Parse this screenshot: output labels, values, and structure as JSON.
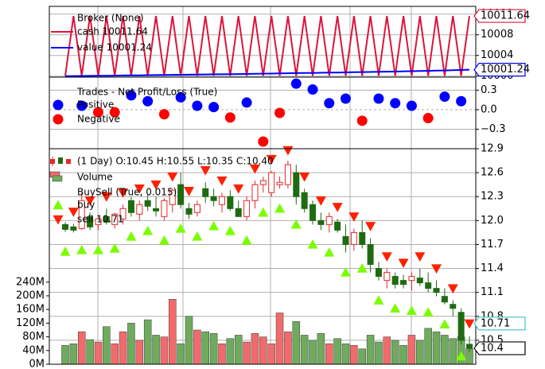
{
  "chart_data": [
    {
      "type": "line",
      "legend_title": "Broker (None)",
      "ylim": [
        9999.8,
        10013.5
      ],
      "yticks": [
        10000,
        10004,
        10008,
        10012
      ],
      "grid": true,
      "series": [
        {
          "name": "cash 10011.64",
          "color": "#dc143c",
          "values": [
            10000.05,
            10011.64,
            10000.05,
            10011.64,
            10000.05,
            10011.64,
            10000.05,
            10011.64,
            10000.05,
            10011.64,
            10000.05,
            10011.64,
            10000.05,
            10011.64,
            10000.05,
            10011.64,
            10000.05,
            10011.64,
            10000.05,
            10011.64,
            10000.05,
            10011.64,
            10000.05,
            10011.64,
            10000.05,
            10011.64,
            10000.05,
            10011.64,
            10000.05,
            10011.64,
            10000.05,
            10011.64,
            10000.05,
            10011.64,
            10000.05,
            10011.64,
            10000.05,
            10011.64,
            10000.05,
            10011.64,
            10000.05,
            10011.64,
            10000.05,
            10011.64,
            10000.05,
            10011.64,
            10000.05,
            10011.64,
            10000.05,
            10011.64
          ]
        },
        {
          "name": "value 10001.24",
          "color": "#0000ff",
          "values": [
            10000.0,
            10000.02,
            10000.03,
            10000.05,
            10000.06,
            10000.08,
            10000.1,
            10000.12,
            10000.14,
            10000.15,
            10000.18,
            10000.2,
            10000.22,
            10000.25,
            10000.26,
            10000.28,
            10000.3,
            10000.32,
            10000.35,
            10000.36,
            10000.38,
            10000.4,
            10000.42,
            10000.45,
            10000.48,
            10000.5,
            10000.52,
            10000.55,
            10000.58,
            10000.6,
            10000.62,
            10000.65,
            10000.68,
            10000.7,
            10000.72,
            10000.75,
            10000.78,
            10000.8,
            10000.83,
            10000.86,
            10000.88,
            10000.92,
            10000.95,
            10000.98,
            10001.02,
            10001.06,
            10001.1,
            10001.14,
            10001.18,
            10001.24
          ]
        }
      ]
    },
    {
      "type": "scatter",
      "legend_title": "Trades - Net Profit/Loss (True)",
      "ylim": [
        -0.6,
        0.5
      ],
      "yticks": [
        0.3,
        {
          "value": 0,
          "label": "0.0"
        },
        {
          "value": -0.3,
          "label": "−0.3"
        }
      ],
      "grid": true,
      "series": [
        {
          "name": "Positive",
          "color": "#0000ff",
          "values": [
            null,
            null,
            0.06,
            null,
            null,
            null,
            null,
            null,
            0.22,
            null,
            0.13,
            null,
            null,
            null,
            0.19,
            null,
            0.06,
            null,
            0.04,
            null,
            null,
            null,
            0.11,
            null,
            null,
            null,
            null,
            null,
            0.4,
            null,
            0.31,
            null,
            0.1,
            null,
            0.17,
            null,
            null,
            null,
            0.17,
            null,
            0.1,
            null,
            0.06,
            null,
            null,
            null,
            0.2,
            null,
            0.13,
            null
          ]
        },
        {
          "name": "Negative",
          "color": "#ff0000",
          "values": [
            null,
            null,
            null,
            null,
            -0.04,
            null,
            -0.04,
            null,
            null,
            null,
            null,
            null,
            -0.07,
            null,
            null,
            null,
            null,
            null,
            null,
            null,
            -0.12,
            null,
            null,
            null,
            -0.49,
            null,
            -0.05,
            null,
            null,
            null,
            null,
            null,
            null,
            null,
            null,
            null,
            -0.17,
            null,
            null,
            null,
            null,
            null,
            null,
            null,
            -0.13,
            null,
            null,
            null,
            null,
            null
          ]
        }
      ]
    },
    {
      "type": "candlestick",
      "ylim": [
        10.2,
        12.9
      ],
      "yticks": [
        10.5,
        10.8,
        11.1,
        11.4,
        11.7,
        {
          "value": 12,
          "label": "12.0"
        },
        12.3,
        12.6,
        12.9
      ],
      "y2lim": [
        0,
        630
      ],
      "y2ticks": [
        {
          "value": 0,
          "label": "0M"
        },
        {
          "value": 40,
          "label": "40M"
        },
        {
          "value": 80,
          "label": "80M"
        },
        {
          "value": 120,
          "label": "120M"
        },
        {
          "value": 160,
          "label": "160M"
        },
        {
          "value": 200,
          "label": "200M"
        },
        {
          "value": 240,
          "label": "240M"
        }
      ],
      "grid": true,
      "legend_group_title": "BuySell (True, 0.015)",
      "ohlc": {
        "name": "(1 Day) O:10.45 H:10.55 L:10.35 C:10.40",
        "up_color": "#e8272a",
        "down_color": "#1e6b12",
        "open": [
          11.95,
          11.92,
          11.9,
          12.05,
          11.95,
          12.05,
          11.95,
          12.02,
          12.25,
          12.08,
          12.25,
          12.15,
          12.05,
          12.2,
          12.45,
          12.15,
          12.1,
          12.4,
          12.3,
          12.2,
          12.3,
          12.15,
          12.05,
          12.25,
          12.45,
          12.35,
          12.45,
          12.45,
          12.6,
          12.35,
          12.2,
          12.0,
          11.95,
          11.98,
          11.8,
          11.7,
          11.85,
          11.7,
          11.4,
          11.25,
          11.3,
          11.25,
          11.25,
          11.28,
          11.22,
          11.15,
          11.05,
          10.95,
          10.85,
          10.45
        ],
        "high": [
          11.98,
          11.96,
          12.35,
          12.1,
          12.05,
          12.15,
          12.1,
          12.2,
          12.3,
          12.25,
          12.32,
          12.3,
          12.28,
          12.4,
          12.6,
          12.22,
          12.25,
          12.48,
          12.4,
          12.35,
          12.38,
          12.25,
          12.3,
          12.5,
          12.55,
          12.62,
          12.55,
          12.75,
          12.7,
          12.4,
          12.25,
          12.1,
          12.1,
          12.02,
          11.95,
          11.9,
          12.0,
          11.78,
          11.48,
          11.4,
          11.35,
          11.32,
          11.35,
          11.4,
          11.35,
          11.25,
          11.15,
          11.0,
          10.9,
          10.55
        ],
        "low": [
          11.86,
          11.85,
          11.88,
          11.88,
          11.88,
          11.95,
          11.9,
          11.95,
          12.05,
          12.0,
          12.12,
          12.05,
          12.0,
          12.1,
          12.15,
          12.02,
          12.05,
          12.22,
          12.18,
          12.1,
          12.12,
          12.05,
          12.0,
          12.15,
          12.35,
          12.3,
          12.4,
          12.4,
          12.2,
          12.1,
          11.95,
          11.88,
          11.85,
          11.85,
          11.6,
          11.62,
          11.65,
          11.35,
          11.25,
          11.15,
          11.15,
          11.15,
          11.12,
          11.18,
          11.1,
          11.05,
          10.95,
          10.8,
          10.45,
          10.35
        ],
        "close": [
          11.89,
          11.88,
          12.25,
          11.92,
          12.02,
          11.98,
          12.08,
          12.15,
          12.1,
          12.2,
          12.18,
          12.12,
          12.25,
          12.38,
          12.2,
          12.08,
          12.2,
          12.3,
          12.25,
          12.3,
          12.15,
          12.05,
          12.25,
          12.45,
          12.5,
          12.6,
          12.48,
          12.7,
          12.3,
          12.15,
          12.0,
          11.95,
          12.05,
          11.88,
          11.7,
          11.85,
          11.7,
          11.45,
          11.3,
          11.35,
          11.2,
          11.2,
          11.3,
          11.22,
          11.15,
          11.1,
          10.98,
          10.9,
          10.5,
          10.4
        ]
      },
      "series": [
        {
          "name": "Volume",
          "axis": "y2",
          "up_color": "#f26b6b",
          "down_color": "#6fab5d",
          "edge_color": "#3a3a3a",
          "values": [
            55,
            60,
            95,
            72,
            65,
            110,
            60,
            95,
            120,
            70,
            130,
            85,
            80,
            190,
            60,
            140,
            100,
            95,
            90,
            60,
            75,
            85,
            65,
            90,
            80,
            60,
            150,
            95,
            125,
            85,
            70,
            90,
            60,
            75,
            60,
            55,
            45,
            85,
            65,
            80,
            70,
            55,
            85,
            70,
            105,
            95,
            85,
            75,
            80,
            45
          ]
        },
        {
          "name": "buy",
          "marker": "triangle-up",
          "color": "#7cfc00",
          "values": [
            11.61,
            null,
            11.63,
            null,
            11.63,
            null,
            11.65,
            null,
            11.8,
            null,
            11.87,
            null,
            11.75,
            null,
            11.9,
            null,
            11.8,
            null,
            11.93,
            null,
            11.87,
            null,
            11.75,
            null,
            12.1,
            null,
            12.15,
            null,
            11.95,
            null,
            11.7,
            null,
            11.6,
            null,
            11.35,
            null,
            11.4,
            null,
            11.0,
            null,
            10.9,
            null,
            10.87,
            null,
            10.85,
            null,
            10.7,
            null,
            10.3,
            null
          ]
        },
        {
          "name": "sell 10.71",
          "marker": "triangle-down",
          "color": "#ff2000",
          "values": [
            null,
            12.11,
            null,
            12.25,
            null,
            12.3,
            null,
            12.35,
            null,
            12.4,
            null,
            12.45,
            null,
            12.55,
            null,
            12.37,
            null,
            12.63,
            null,
            12.5,
            null,
            12.4,
            null,
            12.65,
            null,
            12.77,
            null,
            12.88,
            null,
            12.55,
            null,
            12.25,
            null,
            12.17,
            null,
            12.05,
            null,
            11.93,
            null,
            11.55,
            null,
            11.47,
            null,
            11.55,
            null,
            11.4,
            null,
            11.15,
            null,
            10.71
          ]
        }
      ]
    }
  ]
}
